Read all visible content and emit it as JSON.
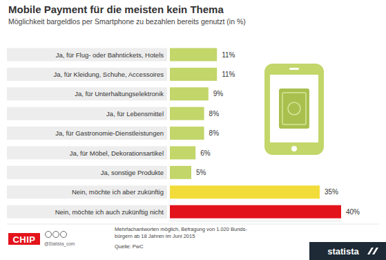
{
  "chart_data": {
    "type": "bar",
    "orientation": "horizontal",
    "title": "Mobile Payment für die meisten kein Thema",
    "subtitle": "Möglichkeit bargeldlos per Smartphone zu bezahlen bereits genutzt (in %)",
    "categories": [
      "Ja, für Flug- oder Bahntickets, Hotels",
      "Ja, für Kleidung, Schuhe, Accessoires",
      "Ja, für Unterhaltungselektronik",
      "Ja, für Lebensmittel",
      "Ja, für Gastronomie-Dienstleistungen",
      "Ja, für Möbel, Dekorationsartikel",
      "Ja, sonstige Produkte",
      "Nein, möchte ich aber zukünftig",
      "Nein, möchte ich auch zukünftig nicht"
    ],
    "values": [
      11,
      11,
      9,
      8,
      8,
      6,
      5,
      35,
      40
    ],
    "value_labels": [
      "11%",
      "11%",
      "9%",
      "8%",
      "8%",
      "6%",
      "5%",
      "35%",
      "40%"
    ],
    "colors": [
      "#c2d66a",
      "#c2d66a",
      "#c2d66a",
      "#c2d66a",
      "#c2d66a",
      "#c2d66a",
      "#c2d66a",
      "#f2dc3a",
      "#e3131b"
    ],
    "xlim": [
      0,
      40
    ],
    "data_labels": true,
    "tick_labels": "y",
    "grid": false,
    "note": [
      "Mehrfachantworten möglich, Befragung von 1.020 Bunds-",
      "bürgern ab 18 Jahren im Juni 2015"
    ],
    "source": "Quelle: PwC",
    "handle": "@Statista_com",
    "logos": [
      "CHIP",
      "statista"
    ]
  }
}
